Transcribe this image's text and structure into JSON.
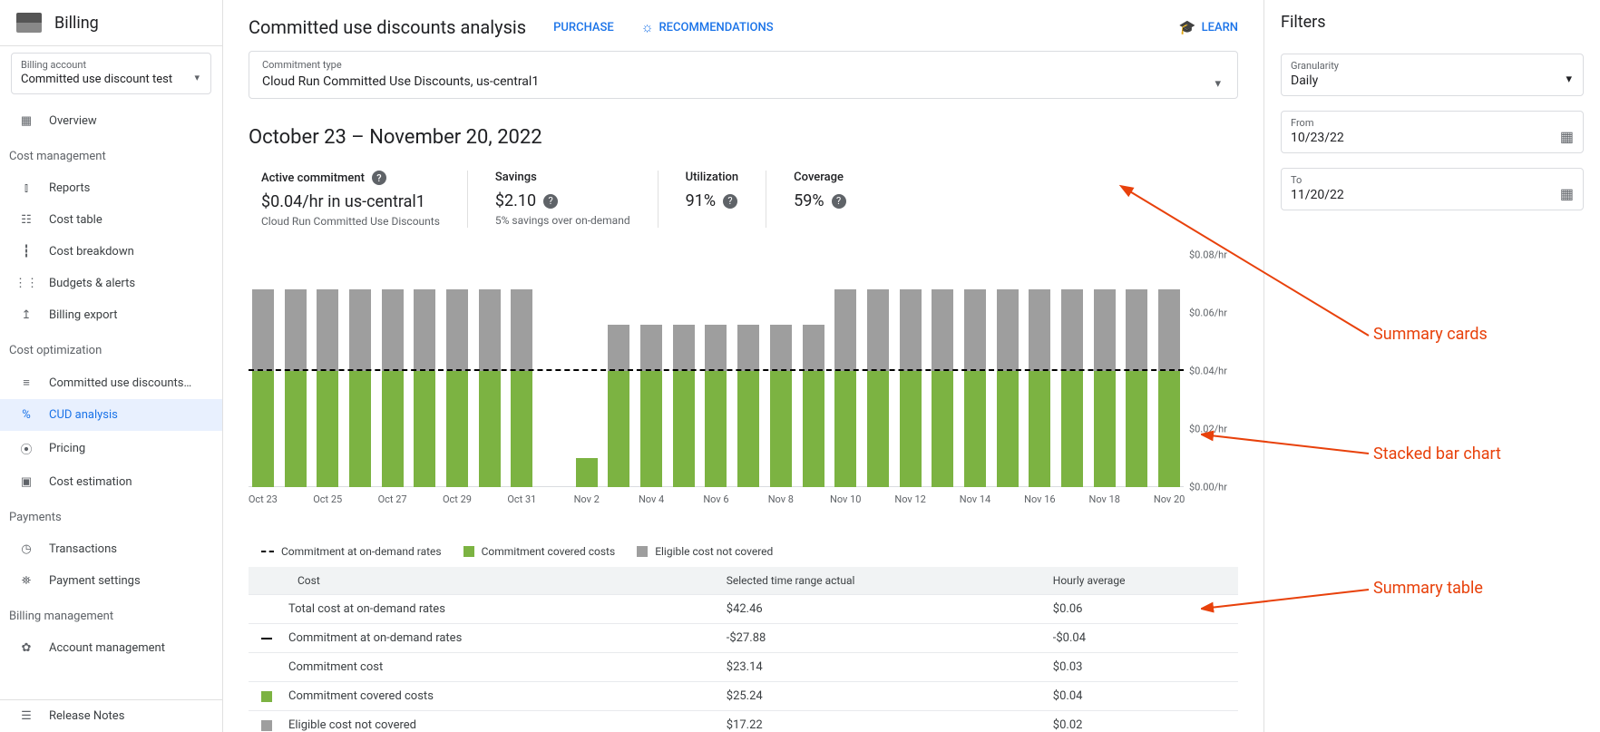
{
  "sidebar": {
    "title": "Billing",
    "account_label": "Billing account",
    "account_value": "Committed use discount test",
    "groups": [
      {
        "items": [
          {
            "key": "overview",
            "label": "Overview",
            "icon": "▦"
          }
        ]
      },
      {
        "label": "Cost management",
        "items": [
          {
            "key": "reports",
            "label": "Reports",
            "icon": "⫾"
          },
          {
            "key": "cost-table",
            "label": "Cost table",
            "icon": "☷"
          },
          {
            "key": "cost-breakdown",
            "label": "Cost breakdown",
            "icon": "┇"
          },
          {
            "key": "budgets",
            "label": "Budgets & alerts",
            "icon": "⋮⋮"
          },
          {
            "key": "export",
            "label": "Billing export",
            "icon": "↥"
          }
        ]
      },
      {
        "label": "Cost optimization",
        "items": [
          {
            "key": "cud",
            "label": "Committed use discounts…",
            "icon": "≡"
          },
          {
            "key": "cud-analysis",
            "label": "CUD analysis",
            "icon": "%",
            "active": true
          },
          {
            "key": "pricing",
            "label": "Pricing",
            "icon": "⦿"
          },
          {
            "key": "cost-est",
            "label": "Cost estimation",
            "icon": "▣"
          }
        ]
      },
      {
        "label": "Payments",
        "items": [
          {
            "key": "transactions",
            "label": "Transactions",
            "icon": "◷"
          },
          {
            "key": "payment-settings",
            "label": "Payment settings",
            "icon": "⛯"
          }
        ]
      },
      {
        "label": "Billing management",
        "items": [
          {
            "key": "account-mgmt",
            "label": "Account management",
            "icon": "✿"
          }
        ]
      }
    ],
    "release_notes": "Release Notes"
  },
  "header": {
    "title": "Committed use discounts analysis",
    "purchase": "PURCHASE",
    "recommendations": "RECOMMENDATIONS",
    "learn": "LEARN"
  },
  "commitment_type": {
    "label": "Commitment type",
    "value": "Cloud Run Committed Use Discounts, us-central1"
  },
  "date_range": "October 23 – November 20, 2022",
  "cards": [
    {
      "title": "Active commitment",
      "value": "$0.04/hr in us-central1",
      "sub": "Cloud Run Committed Use Discounts",
      "help_title": true
    },
    {
      "title": "Savings",
      "value": "$2.10",
      "sub": "5% savings over on-demand",
      "help_val": true
    },
    {
      "title": "Utilization",
      "value": "91%",
      "help_val": true
    },
    {
      "title": "Coverage",
      "value": "59%",
      "help_val": true
    }
  ],
  "chart": {
    "ymax": 0.08,
    "ytick": 0.02,
    "yticks": [
      "$0.08/hr",
      "$0.06/hr",
      "$0.04/hr",
      "$0.02/hr",
      "$0.00/hr"
    ],
    "commitment_line": 0.04,
    "colors": {
      "covered": "#7cb342",
      "uncovered": "#9e9e9e"
    },
    "days": [
      {
        "x": "Oct 23",
        "covered": 0.04,
        "uncovered": 0.028
      },
      {
        "x": "",
        "covered": 0.04,
        "uncovered": 0.028
      },
      {
        "x": "Oct 25",
        "covered": 0.04,
        "uncovered": 0.028
      },
      {
        "x": "",
        "covered": 0.04,
        "uncovered": 0.028
      },
      {
        "x": "Oct 27",
        "covered": 0.04,
        "uncovered": 0.028
      },
      {
        "x": "",
        "covered": 0.04,
        "uncovered": 0.028
      },
      {
        "x": "Oct 29",
        "covered": 0.04,
        "uncovered": 0.028
      },
      {
        "x": "",
        "covered": 0.04,
        "uncovered": 0.028
      },
      {
        "x": "Oct 31",
        "covered": 0.04,
        "uncovered": 0.028
      },
      {
        "x": "",
        "covered": 0,
        "uncovered": 0
      },
      {
        "x": "Nov 2",
        "covered": 0.01,
        "uncovered": 0
      },
      {
        "x": "",
        "covered": 0.04,
        "uncovered": 0.016
      },
      {
        "x": "Nov 4",
        "covered": 0.04,
        "uncovered": 0.016
      },
      {
        "x": "",
        "covered": 0.04,
        "uncovered": 0.016
      },
      {
        "x": "Nov 6",
        "covered": 0.04,
        "uncovered": 0.016
      },
      {
        "x": "",
        "covered": 0.04,
        "uncovered": 0.016
      },
      {
        "x": "Nov 8",
        "covered": 0.04,
        "uncovered": 0.016
      },
      {
        "x": "",
        "covered": 0.04,
        "uncovered": 0.016
      },
      {
        "x": "Nov 10",
        "covered": 0.04,
        "uncovered": 0.028
      },
      {
        "x": "",
        "covered": 0.04,
        "uncovered": 0.028
      },
      {
        "x": "Nov 12",
        "covered": 0.04,
        "uncovered": 0.028
      },
      {
        "x": "",
        "covered": 0.04,
        "uncovered": 0.028
      },
      {
        "x": "Nov 14",
        "covered": 0.04,
        "uncovered": 0.028
      },
      {
        "x": "",
        "covered": 0.04,
        "uncovered": 0.028
      },
      {
        "x": "Nov 16",
        "covered": 0.04,
        "uncovered": 0.028
      },
      {
        "x": "",
        "covered": 0.04,
        "uncovered": 0.028
      },
      {
        "x": "Nov 18",
        "covered": 0.04,
        "uncovered": 0.028
      },
      {
        "x": "",
        "covered": 0.04,
        "uncovered": 0.028
      },
      {
        "x": "Nov 20",
        "covered": 0.04,
        "uncovered": 0.028
      }
    ]
  },
  "legend": [
    {
      "kind": "dash",
      "label": "Commitment at on-demand rates"
    },
    {
      "kind": "sq",
      "color": "#7cb342",
      "label": "Commitment covered costs"
    },
    {
      "kind": "sq",
      "color": "#9e9e9e",
      "label": "Eligible cost not covered"
    }
  ],
  "table": {
    "headers": [
      "Cost",
      "Selected time range actual",
      "Hourly average"
    ],
    "rows": [
      {
        "ic": "none",
        "cost": "Total cost at on-demand rates",
        "actual": "$42.46",
        "avg": "$0.06"
      },
      {
        "ic": "dash",
        "cost": "Commitment at on-demand rates",
        "actual": "-$27.88",
        "avg": "-$0.04"
      },
      {
        "ic": "none",
        "cost": "Commitment cost",
        "actual": "$23.14",
        "avg": "$0.03"
      },
      {
        "ic": "sq",
        "color": "#7cb342",
        "cost": "Commitment covered costs",
        "actual": "$25.24",
        "avg": "$0.04"
      },
      {
        "ic": "sq",
        "color": "#9e9e9e",
        "cost": "Eligible cost not covered",
        "actual": "$17.22",
        "avg": "$0.02"
      }
    ]
  },
  "filters": {
    "title": "Filters",
    "granularity": {
      "label": "Granularity",
      "value": "Daily"
    },
    "from": {
      "label": "From",
      "value": "10/23/22"
    },
    "to": {
      "label": "To",
      "value": "11/20/22"
    }
  },
  "annotations": {
    "summary_cards": "Summary cards",
    "stacked_chart": "Stacked bar chart",
    "summary_table": "Summary table"
  }
}
